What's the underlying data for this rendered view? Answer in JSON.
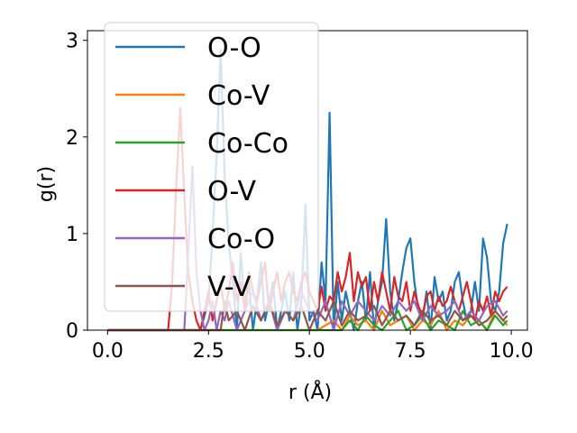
{
  "chart_data": {
    "type": "line",
    "title": "",
    "xlabel": "r (Å)",
    "ylabel": "g(r)",
    "xlim": [
      -0.5,
      10.4
    ],
    "ylim": [
      0,
      3.1
    ],
    "xticks": [
      0.0,
      2.5,
      5.0,
      7.5,
      10.0
    ],
    "xtick_labels": [
      "0.0",
      "2.5",
      "5.0",
      "7.5",
      "10.0"
    ],
    "yticks": [
      0,
      1,
      2,
      3
    ],
    "ytick_labels": [
      "0",
      "1",
      "2",
      "3"
    ],
    "grid": false,
    "legend": "upper-left",
    "series": [
      {
        "name": "O-O",
        "color": "#1f77b4",
        "x": [
          0,
          2.3,
          2.5,
          2.6,
          2.7,
          2.8,
          2.9,
          3.0,
          3.1,
          3.2,
          3.3,
          3.4,
          3.5,
          3.6,
          3.7,
          3.8,
          3.9,
          4.0,
          4.1,
          4.2,
          4.3,
          4.4,
          4.5,
          4.6,
          4.7,
          4.8,
          4.9,
          5.0,
          5.1,
          5.2,
          5.3,
          5.4,
          5.5,
          5.6,
          5.7,
          5.8,
          5.9,
          6.0,
          6.1,
          6.2,
          6.3,
          6.4,
          6.5,
          6.6,
          6.7,
          6.8,
          6.9,
          7.0,
          7.1,
          7.2,
          7.3,
          7.4,
          7.5,
          7.6,
          7.7,
          7.8,
          7.9,
          8.0,
          8.1,
          8.2,
          8.3,
          8.4,
          8.5,
          8.6,
          8.7,
          8.8,
          8.9,
          9.0,
          9.1,
          9.2,
          9.3,
          9.4,
          9.5,
          9.6,
          9.7,
          9.8,
          9.9
        ],
        "y": [
          0,
          0,
          0.3,
          1.0,
          1.8,
          2.9,
          1.6,
          0.9,
          0.5,
          0.0,
          0.8,
          0.2,
          0.5,
          0.0,
          0.3,
          0.7,
          0.1,
          0.3,
          0.5,
          0.0,
          0.2,
          0.4,
          0.1,
          0.6,
          0.0,
          0.3,
          1.3,
          0.1,
          0.2,
          0.0,
          0.7,
          0.3,
          2.25,
          0.0,
          0.5,
          0.1,
          0.4,
          0.2,
          0.0,
          0.3,
          0.5,
          0.1,
          0.6,
          0.0,
          0.3,
          0.5,
          1.15,
          0.4,
          0.1,
          0.3,
          0.6,
          0.85,
          0.95,
          0.5,
          0.2,
          0.1,
          0.4,
          0.0,
          0.55,
          0.3,
          0.4,
          0.1,
          0.2,
          0.5,
          0.6,
          0.3,
          0.1,
          0.2,
          0.5,
          0.2,
          0.95,
          0.75,
          0.3,
          0.2,
          0.4,
          0.9,
          1.1
        ]
      },
      {
        "name": "Co-V",
        "color": "#ff7f0e",
        "x": [
          0,
          5.2,
          5.4,
          5.6,
          5.8,
          6.0,
          6.2,
          6.4,
          6.6,
          6.8,
          7.0,
          7.2,
          7.4,
          7.6,
          7.8,
          8.0,
          8.2,
          8.4,
          8.6,
          8.8,
          9.0,
          9.2,
          9.4,
          9.6,
          9.8,
          9.9
        ],
        "y": [
          0,
          0,
          0.05,
          0.1,
          0.0,
          0.15,
          0.05,
          0.1,
          0.0,
          0.2,
          0.05,
          0.1,
          0.15,
          0.0,
          0.1,
          0.05,
          0.2,
          0.0,
          0.1,
          0.05,
          0.15,
          0.1,
          0.0,
          0.2,
          0.1,
          0.05
        ]
      },
      {
        "name": "Co-Co",
        "color": "#2ca02c",
        "x": [
          0,
          5.8,
          6.0,
          6.2,
          6.4,
          6.6,
          6.8,
          7.0,
          7.2,
          7.4,
          7.6,
          7.8,
          8.0,
          8.2,
          8.4,
          8.6,
          8.8,
          9.0,
          9.2,
          9.4,
          9.6,
          9.8,
          9.9
        ],
        "y": [
          0,
          0,
          0.1,
          0.0,
          0.15,
          0.05,
          0.0,
          0.1,
          0.2,
          0.0,
          0.05,
          0.15,
          0.0,
          0.1,
          0.05,
          0.0,
          0.2,
          0.05,
          0.1,
          0.0,
          0.15,
          0.05,
          0.1
        ]
      },
      {
        "name": "O-V",
        "color": "#d62728",
        "x": [
          0,
          1.5,
          1.6,
          1.7,
          1.8,
          1.9,
          2.0,
          2.1,
          2.2,
          2.3,
          2.4,
          2.5,
          2.6,
          2.7,
          2.8,
          2.9,
          3.0,
          3.1,
          3.2,
          3.3,
          3.4,
          3.5,
          3.6,
          3.7,
          3.8,
          3.9,
          4.0,
          4.1,
          4.2,
          4.3,
          4.4,
          4.5,
          4.6,
          4.7,
          4.8,
          4.9,
          5.0,
          5.1,
          5.2,
          5.3,
          5.4,
          5.5,
          5.6,
          5.7,
          5.8,
          5.9,
          6.0,
          6.1,
          6.2,
          6.3,
          6.4,
          6.5,
          6.6,
          6.7,
          6.8,
          6.9,
          7.0,
          7.1,
          7.2,
          7.3,
          7.4,
          7.5,
          7.6,
          7.7,
          7.8,
          7.9,
          8.0,
          8.1,
          8.2,
          8.3,
          8.4,
          8.5,
          8.6,
          8.7,
          8.8,
          8.9,
          9.0,
          9.1,
          9.2,
          9.3,
          9.4,
          9.5,
          9.6,
          9.7,
          9.8,
          9.9
        ],
        "y": [
          0,
          0,
          0.5,
          1.5,
          2.3,
          1.4,
          0.6,
          0.3,
          0.1,
          0.0,
          0.2,
          0.4,
          0.1,
          0.3,
          0.5,
          0.2,
          0.4,
          0.7,
          0.3,
          0.5,
          0.2,
          0.6,
          0.4,
          0.3,
          0.5,
          0.7,
          0.2,
          0.4,
          0.6,
          0.3,
          0.5,
          0.6,
          0.4,
          0.3,
          0.5,
          0.6,
          0.4,
          0.3,
          0.2,
          0.45,
          0.2,
          0.35,
          0.3,
          0.6,
          0.4,
          0.55,
          0.8,
          0.3,
          0.6,
          0.45,
          0.55,
          0.2,
          0.5,
          0.3,
          0.6,
          0.4,
          0.2,
          0.55,
          0.35,
          0.3,
          0.5,
          0.2,
          0.4,
          0.25,
          0.15,
          0.35,
          0.4,
          0.2,
          0.35,
          0.25,
          0.3,
          0.45,
          0.3,
          0.2,
          0.35,
          0.5,
          0.3,
          0.1,
          0.3,
          0.2,
          0.35,
          0.15,
          0.4,
          0.3,
          0.4,
          0.45
        ]
      },
      {
        "name": "Co-O",
        "color": "#9467bd",
        "x": [
          0,
          1.9,
          2.0,
          2.1,
          2.2,
          2.3,
          2.4,
          2.5,
          2.6,
          2.7,
          2.8,
          2.9,
          3.0,
          3.2,
          3.4,
          3.6,
          3.8,
          4.0,
          4.2,
          4.4,
          4.6,
          4.8,
          5.0,
          5.2,
          5.4,
          5.6,
          5.8,
          6.0,
          6.2,
          6.4,
          6.6,
          6.8,
          7.0,
          7.2,
          7.4,
          7.6,
          7.8,
          8.0,
          8.2,
          8.4,
          8.6,
          8.8,
          9.0,
          9.2,
          9.4,
          9.6,
          9.8,
          9.9
        ],
        "y": [
          0,
          0,
          0.8,
          1.7,
          0.6,
          0.2,
          0.0,
          0.1,
          0.3,
          0.0,
          0.2,
          0.1,
          0.3,
          0.0,
          0.2,
          0.4,
          0.1,
          0.3,
          0.0,
          0.2,
          0.1,
          0.4,
          0.2,
          0.1,
          0.3,
          0.0,
          0.3,
          0.15,
          0.3,
          0.2,
          0.1,
          0.25,
          0.15,
          0.3,
          0.2,
          0.3,
          0.1,
          0.25,
          0.15,
          0.2,
          0.3,
          0.1,
          0.2,
          0.1,
          0.25,
          0.3,
          0.15,
          0.2
        ]
      },
      {
        "name": "V-V",
        "color": "#8c564b",
        "x": [
          0,
          2.8,
          2.9,
          3.0,
          3.2,
          3.4,
          3.6,
          3.8,
          4.0,
          4.2,
          4.4,
          4.6,
          4.8,
          5.0,
          5.2,
          5.4,
          5.6,
          5.8,
          6.0,
          6.2,
          6.4,
          6.6,
          6.8,
          7.0,
          7.2,
          7.4,
          7.6,
          7.8,
          8.0,
          8.2,
          8.4,
          8.6,
          8.8,
          9.0,
          9.2,
          9.4,
          9.6,
          9.8,
          9.9
        ],
        "y": [
          0,
          0,
          0.3,
          0.1,
          0.2,
          0.0,
          0.25,
          0.1,
          0.3,
          0.05,
          0.2,
          0.1,
          0.25,
          0.0,
          0.2,
          0.1,
          0.3,
          0.05,
          0.2,
          0.1,
          0.15,
          0.25,
          0.05,
          0.2,
          0.1,
          0.15,
          0.05,
          0.2,
          0.1,
          0.15,
          0.05,
          0.2,
          0.1,
          0.15,
          0.05,
          0.1,
          0.2,
          0.1,
          0.15
        ]
      }
    ]
  }
}
